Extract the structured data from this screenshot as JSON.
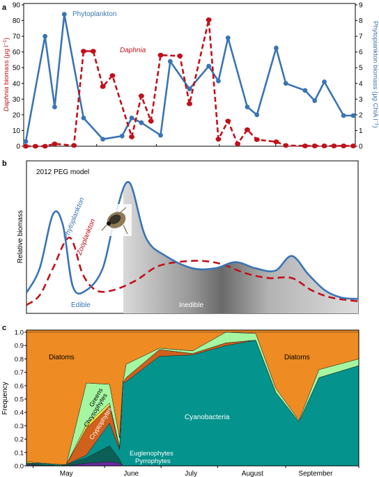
{
  "colors": {
    "daphnia": "#c0111a",
    "phyto": "#3a74b4",
    "diatoms": "#ee8b22",
    "cyano": "#04938d",
    "greens": "#a4f7a0",
    "chryso": "#f2e54a",
    "crypto": "#d0601b",
    "eugleno": "#0b5f56",
    "pyrro": "#6b2aa1",
    "shade_dark": "#6e6e6e",
    "shade_light": "#d8d8d8"
  },
  "panel_a": {
    "panel_label": "a",
    "ylabel_left_a": "Daphnia",
    "ylabel_left_b": " biomass (μg l",
    "ylabel_left_sup": "−1",
    "ylabel_left_c": ")",
    "ylabel_right_a": "Phytoplankton biomass (μg ChlA l",
    "ylabel_right_sup": "−1",
    "ylabel_right_c": ")",
    "legend_phyto": "Phytoplankton",
    "legend_daphnia": "Daphnia",
    "left_ticks": [
      "0",
      "10",
      "20",
      "30",
      "40",
      "50",
      "60",
      "70",
      "80",
      "90"
    ],
    "right_ticks": [
      "0",
      "1",
      "2",
      "3",
      "4",
      "5",
      "6",
      "7",
      "8",
      "9"
    ]
  },
  "panel_b": {
    "panel_label": "b",
    "title": "2012 PEG model",
    "ylabel": "Relative biomass",
    "phyto_label": "Phytoplankton",
    "zoo_label": "Zooplankton",
    "edible": "Edible",
    "inedible": "Inedible"
  },
  "panel_c": {
    "panel_label": "c",
    "ylabel": "Frequency",
    "yticks": [
      "0.0",
      "0.1",
      "0.2",
      "0.3",
      "0.4",
      "0.5",
      "0.6",
      "0.7",
      "0.8",
      "0.9",
      "1.0"
    ],
    "months": [
      "May",
      "June",
      "July",
      "August",
      "September"
    ],
    "labels": {
      "diatoms_left": "Diatoms",
      "diatoms_right": "Diatoms",
      "greens": "Greens",
      "chryso": "Chrysophytes",
      "crypto": "Cryptophytes",
      "cyano": "Cyanobacteria",
      "eugleno": "Euglenophytes",
      "pyrro": "Pyrrophytes"
    }
  },
  "chart_data": [
    {
      "type": "line",
      "panel": "a",
      "xlim": [
        0,
        34
      ],
      "y_left": {
        "label": "Daphnia biomass (μg l−1)",
        "ylim": [
          0,
          90
        ]
      },
      "y_right": {
        "label": "Phytoplankton biomass (μg ChlA l−1)",
        "ylim": [
          0,
          9
        ]
      },
      "series": [
        {
          "name": "Phytoplankton",
          "axis": "right",
          "x": [
            0,
            2,
            3,
            4,
            6,
            8,
            10,
            11,
            12,
            14,
            15,
            17,
            19,
            20,
            21,
            23,
            24,
            26,
            27,
            29,
            30,
            31,
            33,
            34
          ],
          "y": [
            0.3,
            7.0,
            2.5,
            8.4,
            1.8,
            0.45,
            0.65,
            1.8,
            1.5,
            0.7,
            5.4,
            3.65,
            5.1,
            4.15,
            6.9,
            2.5,
            2.0,
            6.25,
            4.0,
            3.55,
            2.9,
            4.1,
            1.95,
            1.95
          ]
        },
        {
          "name": "Daphnia",
          "axis": "left",
          "x": [
            0,
            1,
            2,
            3,
            5,
            6,
            7,
            8,
            9,
            11,
            12,
            13,
            14,
            16,
            17,
            19,
            20,
            21,
            22,
            23,
            24,
            26,
            27,
            29,
            30,
            31,
            32,
            33,
            34
          ],
          "y": [
            0,
            0,
            0,
            1.5,
            0.5,
            60.5,
            60.5,
            38,
            45,
            6,
            32,
            16,
            58,
            57.5,
            27,
            80.5,
            4.5,
            16,
            1.5,
            10.5,
            4.2,
            2.8,
            0.5,
            0.2,
            0.2,
            0.2,
            0.2,
            0.2,
            0.2
          ]
        }
      ]
    },
    {
      "type": "line",
      "panel": "b",
      "title": "2012 PEG model",
      "ylabel": "Relative biomass",
      "series": [
        {
          "name": "Phytoplankton",
          "x": [
            0,
            4,
            8,
            11,
            14,
            18,
            23,
            27,
            31,
            36,
            42,
            50,
            57,
            63,
            69,
            75,
            80,
            85,
            90,
            95,
            100
          ],
          "y": [
            0.1,
            0.3,
            0.74,
            0.65,
            0.15,
            0.12,
            0.3,
            0.75,
            1.0,
            0.55,
            0.4,
            0.3,
            0.3,
            0.35,
            0.3,
            0.28,
            0.4,
            0.25,
            0.12,
            0.06,
            0.05
          ]
        },
        {
          "name": "Zooplankton",
          "x": [
            0,
            4,
            8,
            13,
            17,
            21,
            26,
            33,
            40,
            50,
            58,
            66,
            73,
            80,
            86,
            92,
            100
          ],
          "y": [
            0.0,
            0.08,
            0.3,
            0.55,
            0.25,
            0.12,
            0.12,
            0.2,
            0.32,
            0.36,
            0.34,
            0.26,
            0.22,
            0.22,
            0.12,
            0.06,
            0.03
          ]
        }
      ]
    },
    {
      "type": "area",
      "panel": "c",
      "ylabel": "Frequency",
      "ylim": [
        0,
        1
      ],
      "x_ticks": [
        "May",
        "June",
        "July",
        "August",
        "September"
      ],
      "x": [
        0,
        0.05,
        0.1,
        0.12,
        0.18,
        0.25,
        0.28,
        0.29,
        0.3,
        0.4,
        0.5,
        0.6,
        0.69,
        0.75,
        0.82,
        0.88,
        1.0
      ],
      "series": [
        {
          "name": "Pyrrophytes",
          "values": [
            0.01,
            0.0,
            0.0,
            0.0,
            0.02,
            0.03,
            0.02,
            0.0,
            0.0,
            0.0,
            0.0,
            0.0,
            0.0,
            0.0,
            0.0,
            0.0,
            0.0
          ]
        },
        {
          "name": "Euglenophytes",
          "values": [
            0.01,
            0.01,
            0.0,
            0.01,
            0.04,
            0.12,
            0.03,
            0.0,
            0.0,
            0.0,
            0.0,
            0.0,
            0.0,
            0.0,
            0.0,
            0.0,
            0.0
          ]
        },
        {
          "name": "Cyanobacteria",
          "values": [
            0.0,
            0.01,
            0.01,
            0.0,
            0.02,
            0.17,
            0.07,
            0.62,
            0.63,
            0.82,
            0.83,
            0.9,
            0.94,
            0.55,
            0.33,
            0.66,
            0.75
          ]
        },
        {
          "name": "Cryptophytes",
          "values": [
            0.0,
            0.0,
            0.0,
            0.0,
            0.2,
            0.13,
            0.01,
            0.0,
            0.03,
            0.05,
            0.01,
            0.02,
            0.0,
            0.0,
            0.0,
            0.0,
            0.0
          ]
        },
        {
          "name": "Chrysophytes",
          "values": [
            0.01,
            0.0,
            0.0,
            0.0,
            0.03,
            0.02,
            0.01,
            0.0,
            0.0,
            0.0,
            0.0,
            0.0,
            0.0,
            0.0,
            0.0,
            0.0,
            0.0
          ]
        },
        {
          "name": "Greens",
          "values": [
            0.0,
            0.0,
            0.0,
            0.0,
            0.31,
            0.14,
            0.07,
            0.0,
            0.1,
            0.01,
            0.02,
            0.13,
            0.05,
            0.03,
            0.01,
            0.06,
            0.05
          ]
        },
        {
          "name": "Diatoms",
          "values": [
            0.97,
            0.98,
            0.99,
            0.99,
            0.38,
            0.39,
            0.86,
            0.38,
            0.24,
            0.12,
            0.14,
            0.0,
            0.01,
            0.42,
            0.66,
            0.28,
            0.2
          ]
        }
      ]
    }
  ]
}
